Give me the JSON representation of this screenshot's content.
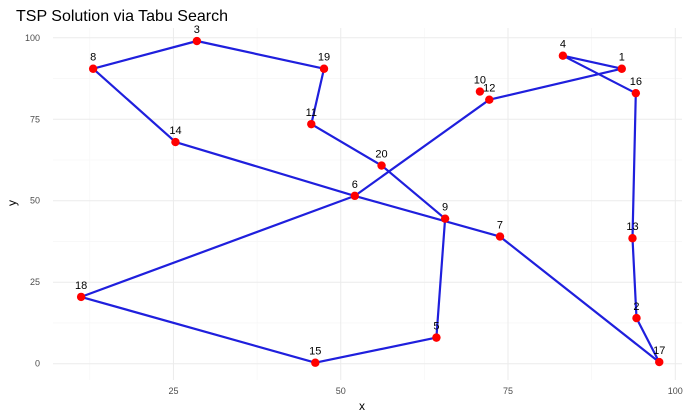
{
  "chart_data": {
    "type": "scatter",
    "title": "TSP Solution via Tabu Search",
    "xlabel": "x",
    "ylabel": "y",
    "xlim": [
      7,
      101
    ],
    "ylim": [
      -5,
      103
    ],
    "x_ticks": [
      25,
      50,
      75,
      100
    ],
    "y_ticks": [
      0,
      25,
      50,
      75,
      100
    ],
    "grid": true,
    "legend": "none",
    "colors": {
      "point": "#ff0000",
      "route": "#1f1fdd"
    },
    "points": [
      {
        "label": "1",
        "x": 92,
        "y": 90.5
      },
      {
        "label": "2",
        "x": 94.2,
        "y": 14
      },
      {
        "label": "3",
        "x": 28.5,
        "y": 99
      },
      {
        "label": "4",
        "x": 83.2,
        "y": 94.5
      },
      {
        "label": "5",
        "x": 64.3,
        "y": 8
      },
      {
        "label": "6",
        "x": 52.1,
        "y": 51.5
      },
      {
        "label": "7",
        "x": 73.8,
        "y": 39
      },
      {
        "label": "8",
        "x": 13,
        "y": 90.5
      },
      {
        "label": "9",
        "x": 65.6,
        "y": 44.5
      },
      {
        "label": "10",
        "x": 70.8,
        "y": 83.5
      },
      {
        "label": "12",
        "x": 72.2,
        "y": 81
      },
      {
        "label": "13",
        "x": 93.6,
        "y": 38.5
      },
      {
        "label": "14",
        "x": 25.3,
        "y": 68
      },
      {
        "label": "15",
        "x": 46.2,
        "y": 0.3
      },
      {
        "label": "16",
        "x": 94.1,
        "y": 83
      },
      {
        "label": "17",
        "x": 97.6,
        "y": 0.5
      },
      {
        "label": "18",
        "x": 11.2,
        "y": 20.5
      },
      {
        "label": "19",
        "x": 47.5,
        "y": 90.5
      },
      {
        "label": "11",
        "x": 45.6,
        "y": 73.5
      },
      {
        "label": "20",
        "x": 56.1,
        "y": 60.8
      }
    ],
    "route": [
      "8",
      "3",
      "19",
      "11",
      "20",
      "9",
      "5",
      "15",
      "18",
      "6",
      "12",
      "1",
      "4",
      "16",
      "13",
      "2",
      "17",
      "7",
      "6",
      "14",
      "8"
    ]
  }
}
